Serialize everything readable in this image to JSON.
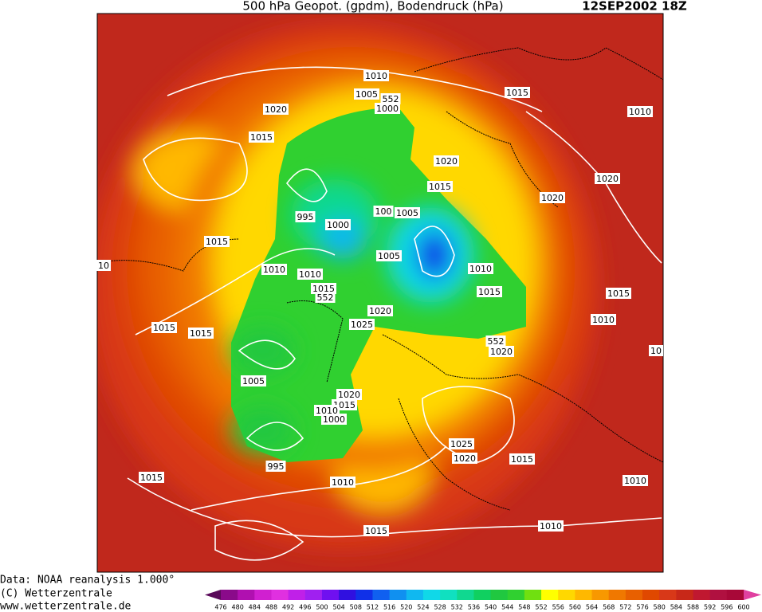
{
  "header": {
    "title": "500 hPa Geopot. (gpdm), Bodendruck (hPa)",
    "date": "12SEP2002 18Z"
  },
  "map": {
    "isobar_labels": [
      1010,
      1005,
      1000,
      1020,
      1015,
      1015,
      1010,
      1020,
      1015,
      1020,
      1020,
      995,
      1000,
      100,
      1005,
      1005,
      1010,
      1010,
      1010,
      1015,
      1015,
      1015,
      1015,
      1010,
      1020,
      1025,
      1015,
      1015,
      1020,
      1005,
      1020,
      1015,
      1010,
      1000,
      995,
      1010,
      1025,
      1020,
      1015,
      1015,
      1010,
      1010,
      1015,
      10,
      10,
      552,
      552,
      552
    ]
  },
  "footer": {
    "lines": [
      "Data: NOAA reanalysis 1.000°",
      "(C) Wetterzentrale",
      "www.wetterzentrale.de"
    ]
  },
  "legend": {
    "labels": [
      476,
      480,
      484,
      488,
      492,
      496,
      500,
      504,
      508,
      512,
      516,
      520,
      524,
      528,
      532,
      536,
      540,
      544,
      548,
      552,
      556,
      560,
      564,
      568,
      572,
      576,
      580,
      584,
      588,
      592,
      596,
      600
    ],
    "colors": [
      "#5a0a5a",
      "#8a0a8a",
      "#b010b0",
      "#d020d0",
      "#e030e0",
      "#c020e8",
      "#a020f0",
      "#7010f0",
      "#3010e0",
      "#1030e8",
      "#1060f0",
      "#1090f0",
      "#10b8f0",
      "#10d8e8",
      "#10e0c0",
      "#10d890",
      "#10d060",
      "#20c840",
      "#30d030",
      "#70e010",
      "#ffff00",
      "#ffd800",
      "#ffb800",
      "#f89800",
      "#f07800",
      "#e86000",
      "#e04800",
      "#d83818",
      "#c82818",
      "#c01830",
      "#b01040",
      "#a80838",
      "#e040a0"
    ]
  }
}
